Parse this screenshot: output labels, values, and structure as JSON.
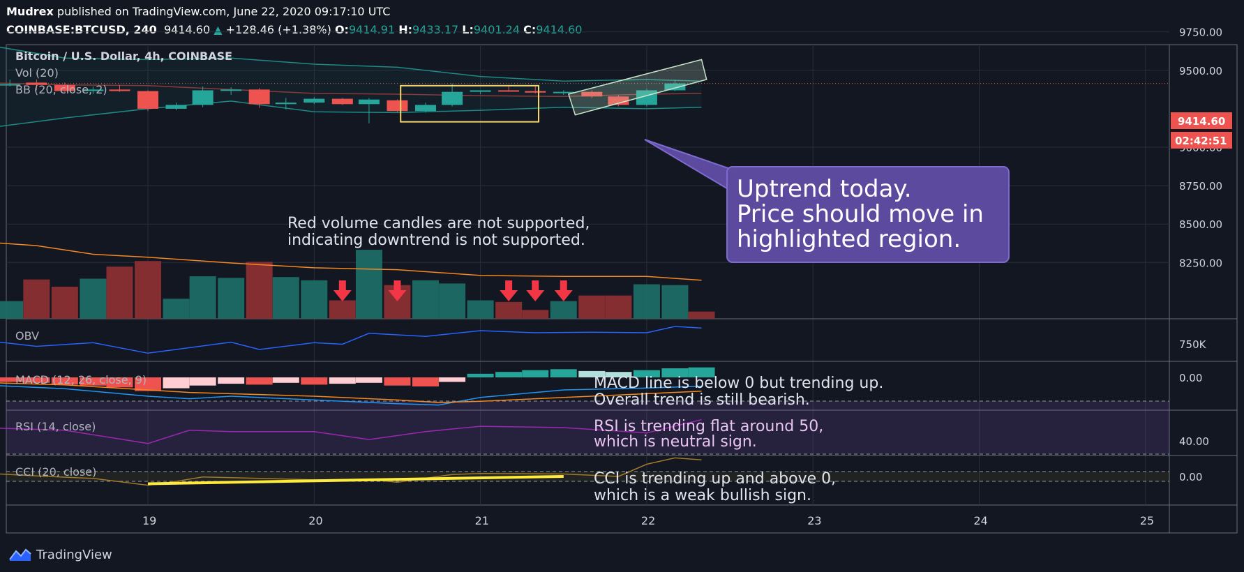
{
  "header": {
    "publisher": "Mudrex",
    "published_text": "published on TradingView.com, June 22, 2020 09:17:10 UTC",
    "symbol": "COINBASE:BTCUSD, 240",
    "last": "9414.60",
    "change_arrow": "▲",
    "change": "+128.46 (+1.38%)",
    "o_label": "O:",
    "o": "9414.91",
    "h_label": "H:",
    "h": "9433.17",
    "l_label": "L:",
    "l": "9401.24",
    "c_label": "C:",
    "c": "9414.60"
  },
  "footer": {
    "brand": "TradingView",
    "logo_icon": "tradingview-logo-icon"
  },
  "colors": {
    "background": "#131722",
    "up": "#26a69a",
    "down": "#ef5350",
    "annotation_box": "#5b4a9e",
    "highlight_yellow": "#f5d76e"
  },
  "chart_data": {
    "type": "candlestick",
    "title": "Bitcoin / U.S. Dollar, 4h, COINBASE",
    "x_tick_labels": [
      "19",
      "20",
      "21",
      "22",
      "23",
      "24",
      "25"
    ],
    "x_ticks": [
      19,
      20,
      21,
      22,
      23,
      24,
      25
    ],
    "price_axis": {
      "ticks": [
        9750,
        9500,
        9000,
        8750,
        8500,
        8250
      ],
      "tick_labels": [
        "9750.00",
        "9500.00",
        "9000.00",
        "8750.00",
        "8500.00",
        "8250.00"
      ],
      "last_price_label": "9414.60",
      "countdown_label": "02:42:51",
      "last_price": 9414.6
    },
    "candles": [
      {
        "t": 18.17,
        "o": 9405,
        "h": 9440,
        "l": 9395,
        "c": 9410
      },
      {
        "t": 18.33,
        "o": 9420,
        "h": 9440,
        "l": 9370,
        "c": 9405
      },
      {
        "t": 18.5,
        "o": 9405,
        "h": 9420,
        "l": 9355,
        "c": 9365
      },
      {
        "t": 18.67,
        "o": 9365,
        "h": 9395,
        "l": 9345,
        "c": 9375
      },
      {
        "t": 18.83,
        "o": 9375,
        "h": 9405,
        "l": 9360,
        "c": 9365
      },
      {
        "t": 19.0,
        "o": 9365,
        "h": 9370,
        "l": 9235,
        "c": 9250
      },
      {
        "t": 19.17,
        "o": 9250,
        "h": 9290,
        "l": 9240,
        "c": 9275
      },
      {
        "t": 19.33,
        "o": 9275,
        "h": 9395,
        "l": 9260,
        "c": 9370
      },
      {
        "t": 19.5,
        "o": 9370,
        "h": 9390,
        "l": 9340,
        "c": 9375
      },
      {
        "t": 19.67,
        "o": 9375,
        "h": 9385,
        "l": 9255,
        "c": 9280
      },
      {
        "t": 19.83,
        "o": 9280,
        "h": 9320,
        "l": 9245,
        "c": 9290
      },
      {
        "t": 20.0,
        "o": 9290,
        "h": 9325,
        "l": 9280,
        "c": 9315
      },
      {
        "t": 20.17,
        "o": 9315,
        "h": 9320,
        "l": 9275,
        "c": 9280
      },
      {
        "t": 20.33,
        "o": 9280,
        "h": 9320,
        "l": 9155,
        "c": 9310
      },
      {
        "t": 20.5,
        "o": 9305,
        "h": 9310,
        "l": 9230,
        "c": 9235
      },
      {
        "t": 20.67,
        "o": 9235,
        "h": 9290,
        "l": 9225,
        "c": 9275
      },
      {
        "t": 20.83,
        "o": 9275,
        "h": 9415,
        "l": 9265,
        "c": 9360
      },
      {
        "t": 21.0,
        "o": 9360,
        "h": 9370,
        "l": 9345,
        "c": 9370
      },
      {
        "t": 21.17,
        "o": 9370,
        "h": 9395,
        "l": 9360,
        "c": 9365
      },
      {
        "t": 21.33,
        "o": 9365,
        "h": 9395,
        "l": 9350,
        "c": 9355
      },
      {
        "t": 21.5,
        "o": 9355,
        "h": 9370,
        "l": 9340,
        "c": 9360
      },
      {
        "t": 21.67,
        "o": 9360,
        "h": 9370,
        "l": 9320,
        "c": 9330
      },
      {
        "t": 21.83,
        "o": 9330,
        "h": 9340,
        "l": 9265,
        "c": 9275
      },
      {
        "t": 22.0,
        "o": 9275,
        "h": 9380,
        "l": 9265,
        "c": 9370
      },
      {
        "t": 22.17,
        "o": 9370,
        "h": 9440,
        "l": 9365,
        "c": 9414.6
      }
    ],
    "bollinger": {
      "label": "BB (20, close, 2)",
      "t": [
        18.0,
        18.5,
        19.0,
        19.5,
        20.0,
        20.5,
        21.0,
        21.5,
        22.0,
        22.33
      ],
      "upper": [
        9670,
        9580,
        9570,
        9580,
        9540,
        9520,
        9460,
        9430,
        9440,
        9430
      ],
      "middle": [
        9420,
        9405,
        9400,
        9375,
        9350,
        9345,
        9335,
        9330,
        9345,
        9350
      ],
      "lower": [
        9120,
        9190,
        9250,
        9300,
        9230,
        9225,
        9240,
        9260,
        9250,
        9260
      ]
    },
    "volume": {
      "label": "Vol (20)",
      "bars": [
        {
          "t": 18.17,
          "v": 22,
          "up": true
        },
        {
          "t": 18.33,
          "v": 49,
          "up": false
        },
        {
          "t": 18.5,
          "v": 40,
          "up": false
        },
        {
          "t": 18.67,
          "v": 50,
          "up": true
        },
        {
          "t": 18.83,
          "v": 65,
          "up": false
        },
        {
          "t": 19.0,
          "v": 72,
          "up": false
        },
        {
          "t": 19.17,
          "v": 25,
          "up": true
        },
        {
          "t": 19.33,
          "v": 53,
          "up": true
        },
        {
          "t": 19.5,
          "v": 51,
          "up": true
        },
        {
          "t": 19.67,
          "v": 71,
          "up": false
        },
        {
          "t": 19.83,
          "v": 52,
          "up": true
        },
        {
          "t": 20.0,
          "v": 48,
          "up": true
        },
        {
          "t": 20.17,
          "v": 23,
          "up": false
        },
        {
          "t": 20.33,
          "v": 86,
          "up": true
        },
        {
          "t": 20.5,
          "v": 42,
          "up": false
        },
        {
          "t": 20.67,
          "v": 48,
          "up": true
        },
        {
          "t": 20.83,
          "v": 44,
          "up": true
        },
        {
          "t": 21.0,
          "v": 23,
          "up": true
        },
        {
          "t": 21.17,
          "v": 21,
          "up": false
        },
        {
          "t": 21.33,
          "v": 11,
          "up": false
        },
        {
          "t": 21.5,
          "v": 22,
          "up": true
        },
        {
          "t": 21.67,
          "v": 29,
          "up": false
        },
        {
          "t": 21.83,
          "v": 29,
          "up": false
        },
        {
          "t": 22.0,
          "v": 43,
          "up": true
        },
        {
          "t": 22.17,
          "v": 42,
          "up": true
        },
        {
          "t": 22.33,
          "v": 9,
          "up": false
        }
      ],
      "ma_t": [
        18.0,
        18.33,
        18.67,
        19.0,
        19.5,
        20.0,
        20.5,
        21.0,
        21.5,
        22.0,
        22.33
      ],
      "ma": [
        80,
        76,
        67,
        64,
        58,
        53,
        51,
        45,
        44,
        44,
        40
      ],
      "down_arrows_at": [
        20.17,
        20.5,
        21.17,
        21.33,
        21.5
      ]
    },
    "obv": {
      "label": "OBV",
      "tick_labels": [
        "750K"
      ],
      "t": [
        18.0,
        18.33,
        18.67,
        19.0,
        19.17,
        19.5,
        19.67,
        20.0,
        20.17,
        20.33,
        20.67,
        21.0,
        21.33,
        21.67,
        22.0,
        22.17,
        22.33
      ],
      "v": [
        30,
        18,
        25,
        5,
        12,
        26,
        12,
        25,
        22,
        43,
        37,
        48,
        44,
        45,
        44,
        56,
        53
      ]
    },
    "macd": {
      "label": "MACD (12, 26, close, 9)",
      "tick_labels": [
        "0.00"
      ],
      "hist_t": [
        18.0,
        18.17,
        18.33,
        18.5,
        18.67,
        18.83,
        19.0,
        19.17,
        19.33,
        19.5,
        19.67,
        19.83,
        20.0,
        20.17,
        20.33,
        20.5,
        20.67,
        20.83,
        21.0,
        21.17,
        21.33,
        21.5,
        21.67,
        21.83,
        22.0,
        22.17,
        22.33
      ],
      "hist": [
        -3,
        -5,
        -6,
        -8,
        -9,
        -11,
        -15,
        -12,
        -9,
        -7,
        -8,
        -6,
        -8,
        -7,
        -6,
        -9,
        -10,
        -5,
        4,
        6,
        8,
        9,
        7,
        6,
        8,
        10,
        11
      ],
      "line_t": [
        18.0,
        18.5,
        19.0,
        19.25,
        19.5,
        20.0,
        20.5,
        20.75,
        21.0,
        21.5,
        22.0,
        22.33
      ],
      "macd_line": [
        -12,
        -18,
        -30,
        -34,
        -30,
        -36,
        -42,
        -44,
        -32,
        -20,
        -17,
        -14
      ],
      "signal_line": [
        -8,
        -12,
        -20,
        -24,
        -26,
        -30,
        -36,
        -40,
        -38,
        -32,
        -26,
        -22
      ]
    },
    "rsi": {
      "label": "RSI (14, close)",
      "tick_labels": [
        "40.00"
      ],
      "t": [
        18.0,
        18.5,
        19.0,
        19.25,
        19.5,
        20.0,
        20.33,
        20.67,
        21.0,
        21.5,
        22.0,
        22.33
      ],
      "v": [
        50,
        48,
        38,
        48,
        47,
        47,
        41,
        47,
        51,
        50,
        46,
        56
      ]
    },
    "cci": {
      "label": "CCI (20, close)",
      "tick_labels": [
        "0.00"
      ],
      "t": [
        18.0,
        18.33,
        18.67,
        19.0,
        19.17,
        19.33,
        19.67,
        20.0,
        20.33,
        20.5,
        20.83,
        21.0,
        21.5,
        21.83,
        22.0,
        22.17,
        22.33
      ],
      "v": [
        70,
        10,
        -40,
        -180,
        -100,
        -10,
        -40,
        -70,
        -60,
        -120,
        40,
        60,
        50,
        0,
        250,
        380,
        340
      ],
      "trend_t": [
        19.0,
        21.5
      ],
      "trend_v": [
        -150,
        0
      ]
    },
    "annotations": {
      "uptrend_box": "Uptrend today.\nPrice should move in\nhighlighted region.",
      "volume_note": "Red volume candles are not supported,\nindicating downtrend is not supported.",
      "macd_note": "MACD line is below 0 but trending up.\nOverall trend is still bearish.",
      "rsi_note": "RSI is trending flat around 50,\nwhich is neutral sign.",
      "cci_note": "CCI is trending up and above 0,\nwhich is a weak bullish sign."
    }
  }
}
